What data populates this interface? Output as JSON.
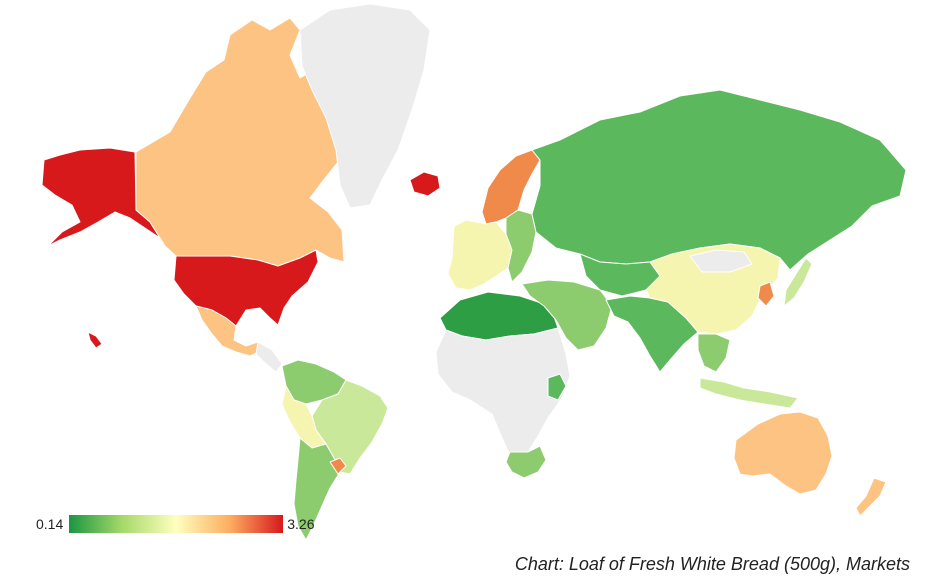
{
  "legend": {
    "min_label": "0.14",
    "max_label": "3.26",
    "gradient_colors": [
      "#1a9641",
      "#a6d96a",
      "#ffffbf",
      "#fdae61",
      "#d7191c"
    ]
  },
  "caption": "Chart: Loaf of Fresh White Bread (500g), Markets",
  "colors": {
    "no_data": "#ececec",
    "red": "#d7191c",
    "orange": "#f08a4b",
    "light_orange": "#fdc383",
    "pale_yellow": "#f5f5b0",
    "light_green": "#c9e89a",
    "mid_green": "#8ccb6e",
    "green": "#5cb85c",
    "dark_green": "#2e9e45"
  },
  "regions": [
    {
      "id": "alaska",
      "color": "red"
    },
    {
      "id": "canada",
      "color": "light_orange"
    },
    {
      "id": "usa",
      "color": "red"
    },
    {
      "id": "hawaii",
      "color": "red"
    },
    {
      "id": "mexico",
      "color": "light_orange"
    },
    {
      "id": "greenland",
      "color": "no_data"
    },
    {
      "id": "iceland",
      "color": "red"
    },
    {
      "id": "central-america",
      "color": "no_data"
    },
    {
      "id": "colombia-venezuela",
      "color": "mid_green"
    },
    {
      "id": "brazil",
      "color": "light_green"
    },
    {
      "id": "peru-bolivia",
      "color": "pale_yellow"
    },
    {
      "id": "chile-argentina",
      "color": "mid_green"
    },
    {
      "id": "uruguay",
      "color": "orange"
    },
    {
      "id": "scandinavia",
      "color": "orange"
    },
    {
      "id": "western-europe",
      "color": "pale_yellow"
    },
    {
      "id": "eastern-europe",
      "color": "mid_green"
    },
    {
      "id": "russia",
      "color": "green"
    },
    {
      "id": "north-africa",
      "color": "dark_green"
    },
    {
      "id": "africa",
      "color": "no_data"
    },
    {
      "id": "kenya",
      "color": "green"
    },
    {
      "id": "south-africa",
      "color": "mid_green"
    },
    {
      "id": "middle-east",
      "color": "mid_green"
    },
    {
      "id": "central-asia",
      "color": "green"
    },
    {
      "id": "india",
      "color": "green"
    },
    {
      "id": "china",
      "color": "pale_yellow"
    },
    {
      "id": "mongolia",
      "color": "no_data"
    },
    {
      "id": "korea",
      "color": "orange"
    },
    {
      "id": "japan",
      "color": "light_green"
    },
    {
      "id": "southeast-asia",
      "color": "mid_green"
    },
    {
      "id": "indonesia",
      "color": "light_green"
    },
    {
      "id": "australia",
      "color": "light_orange"
    },
    {
      "id": "new-zealand",
      "color": "light_orange"
    }
  ]
}
